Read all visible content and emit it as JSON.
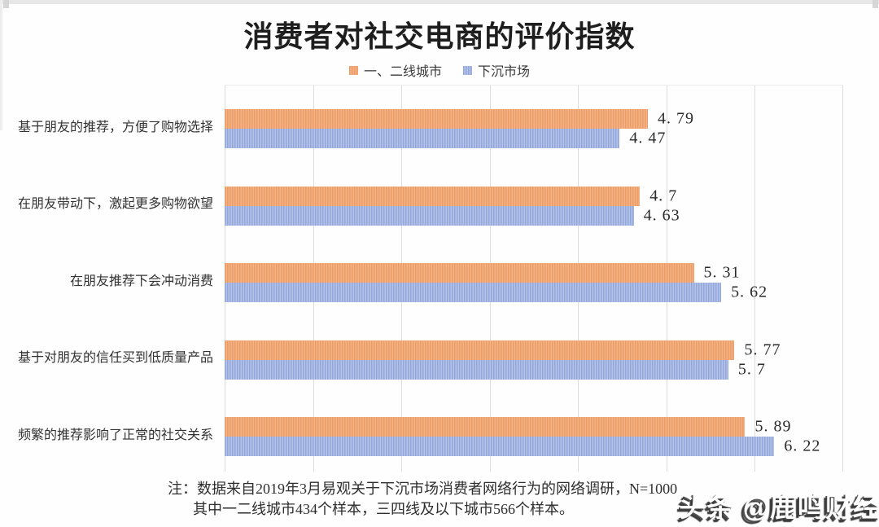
{
  "title": "消费者对社交电商的评价指数",
  "legend": {
    "items": [
      {
        "label": "一、二线城市",
        "color_base": "#F5B285",
        "color_stripe": "#EC9C66"
      },
      {
        "label": "下沉市场",
        "color_base": "#B5C3E9",
        "color_stripe": "#92A7DB"
      }
    ]
  },
  "chart_data": {
    "type": "bar",
    "orientation": "horizontal",
    "title": "消费者对社交电商的评价指数",
    "categories": [
      "基于朋友的推荐，方便了购物选择",
      "在朋友带动下，激起更多购物欲望",
      "在朋友推荐下会冲动消费",
      "基于对朋友的信任买到低质量产品",
      "频繁的推荐影响了正常的社交关系"
    ],
    "series": [
      {
        "name": "一、二线城市",
        "color_base": "#F5B285",
        "color_stripe": "#EC9C66",
        "values": [
          4.79,
          4.7,
          5.31,
          5.77,
          5.89
        ],
        "value_labels": [
          "4. 79",
          "4. 7",
          "5. 31",
          "5. 77",
          "5. 89"
        ]
      },
      {
        "name": "下沉市场",
        "color_base": "#B5C3E9",
        "color_stripe": "#92A7DB",
        "values": [
          4.47,
          4.63,
          5.62,
          5.7,
          6.22
        ],
        "value_labels": [
          "4. 47",
          "4. 63",
          "5. 62",
          "5. 7",
          "6. 22"
        ]
      }
    ],
    "xlim": [
      0,
      7
    ],
    "gridline_interval": 1,
    "grid_on": true,
    "grid_color": "#dcdcdc",
    "legend_position": "top-center",
    "bar_texture": "vertical-stripes"
  },
  "note": {
    "line1": "注：数据来自2019年3月易观关于下沉市场消费者网络行为的网络调研，N=1000",
    "line2": "其中一二线城市434个样本，三四线及以下城市566个样本。"
  },
  "watermark": "头条 @鹿鸣财经"
}
